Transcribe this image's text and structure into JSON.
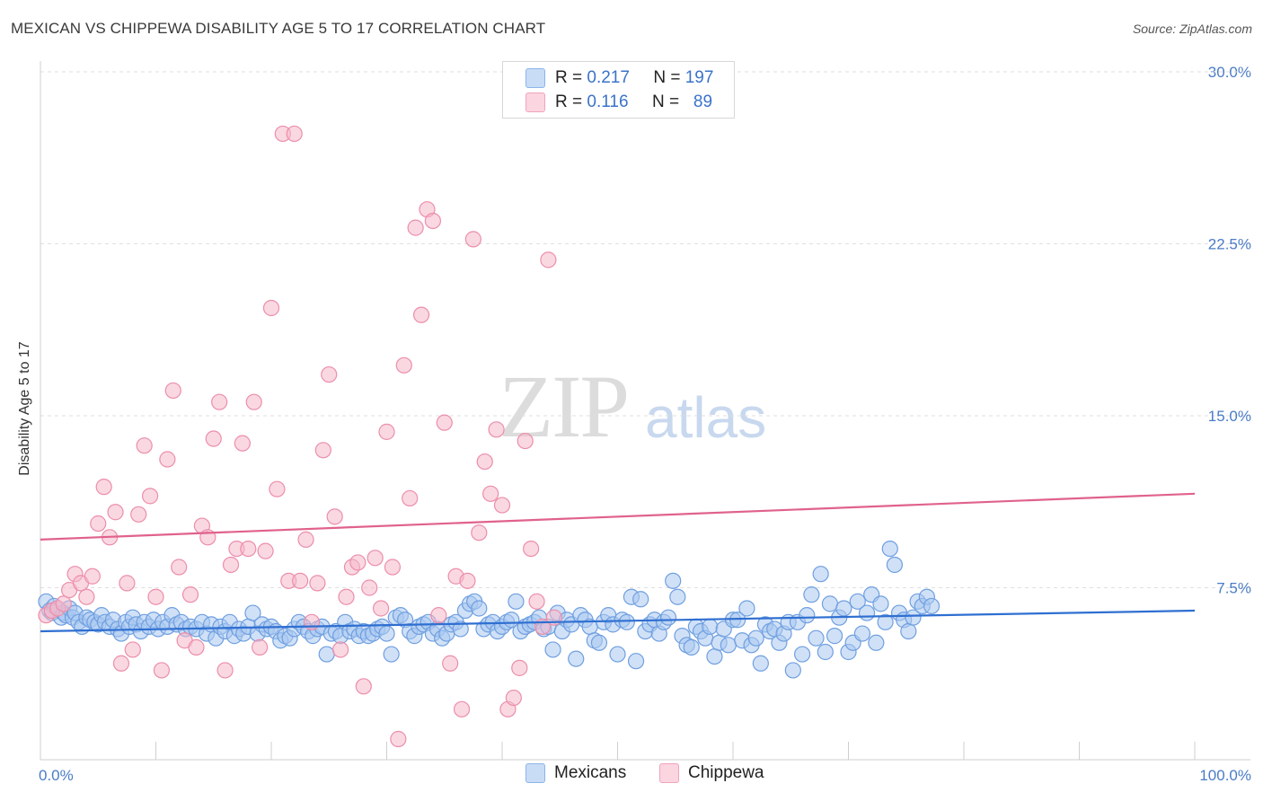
{
  "header": {
    "title": "MEXICAN VS CHIPPEWA DISABILITY AGE 5 TO 17 CORRELATION CHART",
    "source": "Source: ZipAtlas.com"
  },
  "watermark": {
    "zip": "ZIP",
    "atlas": "atlas"
  },
  "legend": {
    "rows": [
      {
        "r_label": "R =",
        "r_value": "0.217",
        "n_label": "N =",
        "n_value": "197",
        "color": "#a9c8f0"
      },
      {
        "r_label": "R =",
        "r_value": "0.116",
        "n_label": "N =",
        "n_value": "89",
        "color": "#f6b8cb"
      }
    ]
  },
  "bottom_legend": {
    "mexicans": "Mexicans",
    "chippewa": "Chippewa"
  },
  "colors": {
    "blue_fill": "#a9c8f0",
    "blue_stroke": "#6f9fe0",
    "blue_line": "#2f6fd1",
    "pink_fill": "#f6b8cb",
    "pink_stroke": "#ec8eaa",
    "pink_line": "#e0628c",
    "grid": "#dfdfdf",
    "tick_text": "#4a7cc7"
  },
  "chart_data": {
    "type": "scatter",
    "title": "MEXICAN VS CHIPPEWA DISABILITY AGE 5 TO 17 CORRELATION CHART",
    "xlabel": "",
    "ylabel": "Disability Age 5 to 17",
    "xlim": [
      0,
      100
    ],
    "ylim": [
      0,
      30
    ],
    "x_tick_labels": [
      "0.0%",
      "100.0%"
    ],
    "y_ticks": [
      7.5,
      15.0,
      22.5,
      30.0
    ],
    "y_tick_labels": [
      "7.5%",
      "15.0%",
      "22.5%",
      "30.0%"
    ],
    "grid": true,
    "legend_position": "top-center",
    "series": [
      {
        "name": "Mexicans",
        "r": 0.217,
        "n": 197,
        "trend": {
          "x": [
            0,
            100
          ],
          "y": [
            5.6,
            6.5
          ]
        },
        "points": [
          [
            0.5,
            6.9
          ],
          [
            0.8,
            6.5
          ],
          [
            1.0,
            6.4
          ],
          [
            1.2,
            6.7
          ],
          [
            1.5,
            6.6
          ],
          [
            1.8,
            6.2
          ],
          [
            2.0,
            6.4
          ],
          [
            2.2,
            6.3
          ],
          [
            2.5,
            6.6
          ],
          [
            2.8,
            6.2
          ],
          [
            3.0,
            6.4
          ],
          [
            3.3,
            6.0
          ],
          [
            3.6,
            5.8
          ],
          [
            4.0,
            6.2
          ],
          [
            4.3,
            6.1
          ],
          [
            4.7,
            6.0
          ],
          [
            5.0,
            5.9
          ],
          [
            5.3,
            6.3
          ],
          [
            5.6,
            6.0
          ],
          [
            6.0,
            5.8
          ],
          [
            6.3,
            6.1
          ],
          [
            6.7,
            5.7
          ],
          [
            7.0,
            5.5
          ],
          [
            7.4,
            6.0
          ],
          [
            7.7,
            5.8
          ],
          [
            8.0,
            6.2
          ],
          [
            8.3,
            5.9
          ],
          [
            8.7,
            5.6
          ],
          [
            9.0,
            6.0
          ],
          [
            9.4,
            5.8
          ],
          [
            9.8,
            6.1
          ],
          [
            10.2,
            5.7
          ],
          [
            10.6,
            6.0
          ],
          [
            11.0,
            5.8
          ],
          [
            11.4,
            6.3
          ],
          [
            11.8,
            5.9
          ],
          [
            12.2,
            6.0
          ],
          [
            12.6,
            5.7
          ],
          [
            13.0,
            5.8
          ],
          [
            13.5,
            5.7
          ],
          [
            14.0,
            6.0
          ],
          [
            14.4,
            5.5
          ],
          [
            14.8,
            5.9
          ],
          [
            15.2,
            5.3
          ],
          [
            15.6,
            5.8
          ],
          [
            16.0,
            5.6
          ],
          [
            16.4,
            6.0
          ],
          [
            16.8,
            5.4
          ],
          [
            17.2,
            5.7
          ],
          [
            17.6,
            5.5
          ],
          [
            18.0,
            5.8
          ],
          [
            18.4,
            6.4
          ],
          [
            18.8,
            5.5
          ],
          [
            19.2,
            5.9
          ],
          [
            19.6,
            5.7
          ],
          [
            20.0,
            5.8
          ],
          [
            20.4,
            5.6
          ],
          [
            20.8,
            5.2
          ],
          [
            21.2,
            5.4
          ],
          [
            21.6,
            5.3
          ],
          [
            22.0,
            5.7
          ],
          [
            22.4,
            6.0
          ],
          [
            22.8,
            5.8
          ],
          [
            23.2,
            5.6
          ],
          [
            23.6,
            5.4
          ],
          [
            24.0,
            5.7
          ],
          [
            24.4,
            5.8
          ],
          [
            24.8,
            4.6
          ],
          [
            25.2,
            5.5
          ],
          [
            25.6,
            5.6
          ],
          [
            26.0,
            5.4
          ],
          [
            26.4,
            6.0
          ],
          [
            26.8,
            5.6
          ],
          [
            27.2,
            5.7
          ],
          [
            27.6,
            5.4
          ],
          [
            28.0,
            5.6
          ],
          [
            28.4,
            5.4
          ],
          [
            28.8,
            5.5
          ],
          [
            29.2,
            5.7
          ],
          [
            29.6,
            5.8
          ],
          [
            30.0,
            5.5
          ],
          [
            30.4,
            4.6
          ],
          [
            30.8,
            6.2
          ],
          [
            31.2,
            6.3
          ],
          [
            31.6,
            6.1
          ],
          [
            32.0,
            5.6
          ],
          [
            32.4,
            5.4
          ],
          [
            32.8,
            5.8
          ],
          [
            33.2,
            5.9
          ],
          [
            33.6,
            6.0
          ],
          [
            34.0,
            5.5
          ],
          [
            34.4,
            5.7
          ],
          [
            34.8,
            5.3
          ],
          [
            35.2,
            5.5
          ],
          [
            35.6,
            5.9
          ],
          [
            36.0,
            6.0
          ],
          [
            36.4,
            5.7
          ],
          [
            36.8,
            6.5
          ],
          [
            37.2,
            6.8
          ],
          [
            37.6,
            6.9
          ],
          [
            38.0,
            6.6
          ],
          [
            38.4,
            5.7
          ],
          [
            38.8,
            5.9
          ],
          [
            39.2,
            6.0
          ],
          [
            39.6,
            5.6
          ],
          [
            40.0,
            5.8
          ],
          [
            40.4,
            6.0
          ],
          [
            40.8,
            6.1
          ],
          [
            41.2,
            6.9
          ],
          [
            41.6,
            5.6
          ],
          [
            42.0,
            5.8
          ],
          [
            42.4,
            5.9
          ],
          [
            42.8,
            6.0
          ],
          [
            43.2,
            6.2
          ],
          [
            43.6,
            5.7
          ],
          [
            44.0,
            5.8
          ],
          [
            44.4,
            4.8
          ],
          [
            44.8,
            6.4
          ],
          [
            45.2,
            5.6
          ],
          [
            45.6,
            6.1
          ],
          [
            46.0,
            5.9
          ],
          [
            46.4,
            4.4
          ],
          [
            46.8,
            6.3
          ],
          [
            47.2,
            6.1
          ],
          [
            47.6,
            5.8
          ],
          [
            48.0,
            5.2
          ],
          [
            48.4,
            5.1
          ],
          [
            48.8,
            6.0
          ],
          [
            49.2,
            6.3
          ],
          [
            49.6,
            5.9
          ],
          [
            50.0,
            4.6
          ],
          [
            50.4,
            6.1
          ],
          [
            50.8,
            6.0
          ],
          [
            51.2,
            7.1
          ],
          [
            51.6,
            4.3
          ],
          [
            52.0,
            7.0
          ],
          [
            52.4,
            5.6
          ],
          [
            52.8,
            5.9
          ],
          [
            53.2,
            6.1
          ],
          [
            53.6,
            5.5
          ],
          [
            54.0,
            6.0
          ],
          [
            54.4,
            6.2
          ],
          [
            54.8,
            7.8
          ],
          [
            55.2,
            7.1
          ],
          [
            55.6,
            5.4
          ],
          [
            56.0,
            5.0
          ],
          [
            56.4,
            4.9
          ],
          [
            56.8,
            5.8
          ],
          [
            57.2,
            5.6
          ],
          [
            57.6,
            5.3
          ],
          [
            58.0,
            5.8
          ],
          [
            58.4,
            4.5
          ],
          [
            58.8,
            5.1
          ],
          [
            59.2,
            5.7
          ],
          [
            59.6,
            5.0
          ],
          [
            60.0,
            6.1
          ],
          [
            60.4,
            6.1
          ],
          [
            60.8,
            5.2
          ],
          [
            61.2,
            6.6
          ],
          [
            61.6,
            5.0
          ],
          [
            62.0,
            5.3
          ],
          [
            62.4,
            4.2
          ],
          [
            62.8,
            5.9
          ],
          [
            63.2,
            5.6
          ],
          [
            63.6,
            5.7
          ],
          [
            64.0,
            5.1
          ],
          [
            64.4,
            5.5
          ],
          [
            64.8,
            6.0
          ],
          [
            65.2,
            3.9
          ],
          [
            65.6,
            6.0
          ],
          [
            66.0,
            4.6
          ],
          [
            66.4,
            6.3
          ],
          [
            66.8,
            7.2
          ],
          [
            67.2,
            5.3
          ],
          [
            67.6,
            8.1
          ],
          [
            68.0,
            4.7
          ],
          [
            68.4,
            6.8
          ],
          [
            68.8,
            5.4
          ],
          [
            69.2,
            6.2
          ],
          [
            69.6,
            6.6
          ],
          [
            70.0,
            4.7
          ],
          [
            70.4,
            5.1
          ],
          [
            70.8,
            6.9
          ],
          [
            71.2,
            5.5
          ],
          [
            71.6,
            6.4
          ],
          [
            72.0,
            7.2
          ],
          [
            72.4,
            5.1
          ],
          [
            72.8,
            6.8
          ],
          [
            73.2,
            6.0
          ],
          [
            73.6,
            9.2
          ],
          [
            74.0,
            8.5
          ],
          [
            74.4,
            6.4
          ],
          [
            74.8,
            6.1
          ],
          [
            75.2,
            5.6
          ],
          [
            75.6,
            6.2
          ],
          [
            76.0,
            6.9
          ],
          [
            76.4,
            6.7
          ],
          [
            76.8,
            7.1
          ],
          [
            77.2,
            6.7
          ]
        ]
      },
      {
        "name": "Chippewa",
        "r": 0.116,
        "n": 89,
        "trend": {
          "x": [
            0,
            100
          ],
          "y": [
            9.6,
            11.6
          ]
        },
        "points": [
          [
            0.5,
            6.3
          ],
          [
            1.0,
            6.5
          ],
          [
            1.5,
            6.6
          ],
          [
            2.0,
            6.8
          ],
          [
            2.5,
            7.4
          ],
          [
            3.0,
            8.1
          ],
          [
            3.5,
            7.7
          ],
          [
            4.0,
            7.1
          ],
          [
            4.5,
            8.0
          ],
          [
            5.0,
            10.3
          ],
          [
            5.5,
            11.9
          ],
          [
            6.0,
            9.7
          ],
          [
            6.5,
            10.8
          ],
          [
            7.0,
            4.2
          ],
          [
            7.5,
            7.7
          ],
          [
            8.0,
            4.8
          ],
          [
            8.5,
            10.7
          ],
          [
            9.0,
            13.7
          ],
          [
            9.5,
            11.5
          ],
          [
            10.0,
            7.1
          ],
          [
            10.5,
            3.9
          ],
          [
            11.0,
            13.1
          ],
          [
            11.5,
            16.1
          ],
          [
            12.0,
            8.4
          ],
          [
            12.5,
            5.2
          ],
          [
            13.0,
            7.2
          ],
          [
            13.5,
            4.9
          ],
          [
            14.0,
            10.2
          ],
          [
            14.5,
            9.7
          ],
          [
            15.0,
            14.0
          ],
          [
            15.5,
            15.6
          ],
          [
            16.0,
            3.9
          ],
          [
            16.5,
            8.5
          ],
          [
            17.0,
            9.2
          ],
          [
            17.5,
            13.8
          ],
          [
            18.0,
            9.2
          ],
          [
            18.5,
            15.6
          ],
          [
            19.0,
            4.9
          ],
          [
            19.5,
            9.1
          ],
          [
            20.0,
            19.7
          ],
          [
            20.5,
            11.8
          ],
          [
            21.0,
            27.3
          ],
          [
            21.5,
            7.8
          ],
          [
            22.0,
            27.3
          ],
          [
            22.5,
            7.8
          ],
          [
            23.0,
            9.6
          ],
          [
            23.5,
            6.0
          ],
          [
            24.0,
            7.7
          ],
          [
            24.5,
            13.5
          ],
          [
            25.0,
            16.8
          ],
          [
            25.5,
            10.6
          ],
          [
            26.0,
            4.8
          ],
          [
            26.5,
            7.1
          ],
          [
            27.0,
            8.4
          ],
          [
            27.5,
            8.6
          ],
          [
            28.0,
            3.2
          ],
          [
            28.5,
            7.5
          ],
          [
            29.0,
            8.8
          ],
          [
            29.5,
            6.6
          ],
          [
            30.0,
            14.3
          ],
          [
            30.5,
            8.4
          ],
          [
            31.0,
            0.9
          ],
          [
            31.5,
            17.2
          ],
          [
            32.0,
            11.4
          ],
          [
            32.5,
            23.2
          ],
          [
            33.0,
            19.4
          ],
          [
            33.5,
            24.0
          ],
          [
            34.0,
            23.5
          ],
          [
            34.5,
            6.3
          ],
          [
            35.0,
            14.7
          ],
          [
            35.5,
            4.2
          ],
          [
            36.0,
            8.0
          ],
          [
            36.5,
            2.2
          ],
          [
            37.0,
            7.8
          ],
          [
            37.5,
            22.7
          ],
          [
            38.0,
            9.9
          ],
          [
            38.5,
            13.0
          ],
          [
            39.0,
            11.6
          ],
          [
            39.5,
            14.4
          ],
          [
            40.0,
            11.1
          ],
          [
            40.5,
            2.2
          ],
          [
            41.0,
            2.7
          ],
          [
            41.5,
            4.0
          ],
          [
            42.0,
            13.9
          ],
          [
            42.5,
            9.2
          ],
          [
            43.0,
            6.9
          ],
          [
            43.5,
            5.8
          ],
          [
            44.0,
            21.8
          ],
          [
            44.5,
            6.2
          ]
        ]
      }
    ]
  }
}
